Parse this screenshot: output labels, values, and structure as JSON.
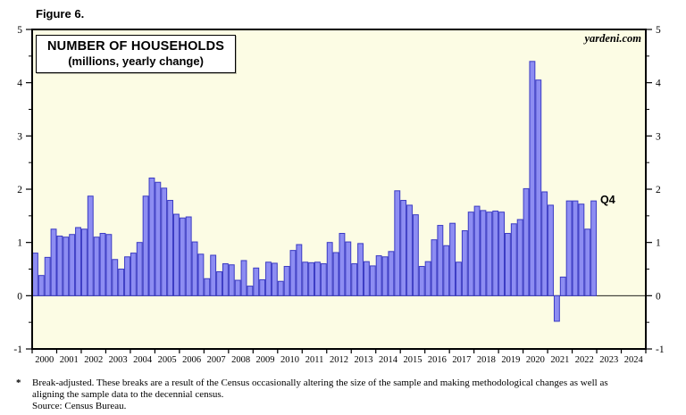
{
  "figure_label": "Figure 6.",
  "watermark": "yardeni.com",
  "footnote": {
    "marker": "*",
    "line1": "Break-adjusted. These breaks are a result of the Census occasionally altering the size of the sample and making methodological changes as well as",
    "line2": "aligning the sample data to the decennial census.",
    "source": "Source: Census Bureau."
  },
  "chart_data": {
    "type": "bar",
    "title": "NUMBER OF HOUSEHOLDS",
    "subtitle": "(millions, yearly change)",
    "x_range": [
      2000,
      2025
    ],
    "ylim": [
      -1,
      5
    ],
    "y_ticks": [
      -1,
      0,
      1,
      2,
      3,
      4,
      5
    ],
    "y_minor_step": 0.5,
    "x_tick_labels": [
      "2000",
      "2001",
      "2002",
      "2003",
      "2004",
      "2005",
      "2006",
      "2007",
      "2008",
      "2009",
      "2010",
      "2011",
      "2012",
      "2013",
      "2014",
      "2015",
      "2016",
      "2017",
      "2018",
      "2019",
      "2020",
      "2021",
      "2022",
      "2023",
      "2024"
    ],
    "grid": false,
    "legend": false,
    "zero_line": true,
    "annotation": {
      "text": "Q4",
      "value": 1.78,
      "x_year": 2023.1
    },
    "series": [
      {
        "name": "Number of households, yearly change (millions)",
        "frequency": "quarterly",
        "start_period": "2000Q1",
        "end_period": "2022Q4",
        "values": [
          0.8,
          0.38,
          0.72,
          1.25,
          1.12,
          1.1,
          1.15,
          1.28,
          1.25,
          1.87,
          1.1,
          1.17,
          1.15,
          0.68,
          0.5,
          0.73,
          0.8,
          1.0,
          1.87,
          2.21,
          2.13,
          2.02,
          1.79,
          1.53,
          1.46,
          1.48,
          1.01,
          0.78,
          0.32,
          0.76,
          0.45,
          0.6,
          0.58,
          0.29,
          0.66,
          0.18,
          0.52,
          0.3,
          0.63,
          0.61,
          0.27,
          0.55,
          0.85,
          0.96,
          0.63,
          0.62,
          0.63,
          0.6,
          1.0,
          0.81,
          1.17,
          1.01,
          0.6,
          0.98,
          0.64,
          0.56,
          0.75,
          0.73,
          0.83,
          1.97,
          1.79,
          1.7,
          1.52,
          0.55,
          0.64,
          1.05,
          1.32,
          0.94,
          1.36,
          0.63,
          1.22,
          1.57,
          1.68,
          1.6,
          1.57,
          1.59,
          1.57,
          1.17,
          1.35,
          1.43,
          2.01,
          4.4,
          4.05,
          1.95,
          1.7,
          -0.48,
          0.35,
          1.78,
          1.78,
          1.72,
          1.25,
          1.78
        ]
      }
    ],
    "colors": {
      "bar_fill": "#8d8df2",
      "bar_border": "#3b3bc4",
      "plot_bg": "#fcfce4",
      "axis": "#000000",
      "page_bg": "#ffffff"
    }
  }
}
